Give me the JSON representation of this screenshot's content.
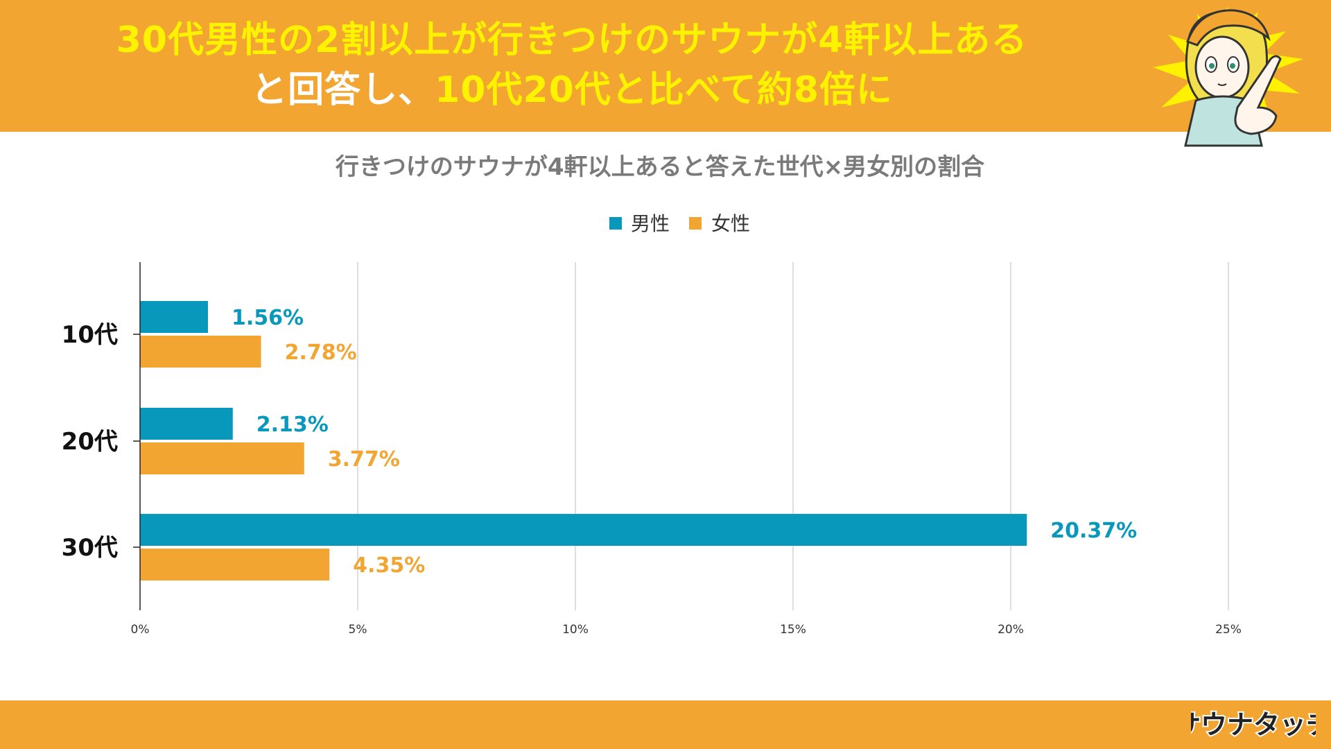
{
  "header": {
    "line1": "30代男性の2割以上が行きつけのサウナが4軒以上ある",
    "line2_a": "と回答し、",
    "line2_b": "10代20代と比べて約8倍に"
  },
  "footer": {
    "logo_text": "サウナタッチ"
  },
  "colors": {
    "orange": "#f2a531",
    "teal": "#0898bb",
    "bar_orange": "#f2a531",
    "headline_yellow": "#fdf200"
  },
  "mascot": {
    "icon": "mascot-girl-pointing-icon"
  },
  "chart_data": {
    "type": "bar",
    "orientation": "horizontal",
    "title": "行きつけのサウナが4軒以上あると答えた世代×男女別の割合",
    "categories": [
      "10代",
      "20代",
      "30代"
    ],
    "series": [
      {
        "name": "男性",
        "color": "#0898bb",
        "values": [
          1.56,
          2.13,
          20.37
        ],
        "labels": [
          "1.56%",
          "2.13%",
          "20.37%"
        ]
      },
      {
        "name": "女性",
        "color": "#f2a531",
        "values": [
          2.78,
          3.77,
          4.35
        ],
        "labels": [
          "2.78%",
          "3.77%",
          "4.35%"
        ]
      }
    ],
    "xlim": [
      0,
      25
    ],
    "xticks": [
      {
        "value": 0,
        "label": "0%"
      },
      {
        "value": 5,
        "label": "5%"
      },
      {
        "value": 10,
        "label": "10%"
      },
      {
        "value": 15,
        "label": "15%"
      },
      {
        "value": 20,
        "label": "20%"
      },
      {
        "value": 25,
        "label": "25%"
      }
    ],
    "legend": "top-center",
    "grid": true
  }
}
